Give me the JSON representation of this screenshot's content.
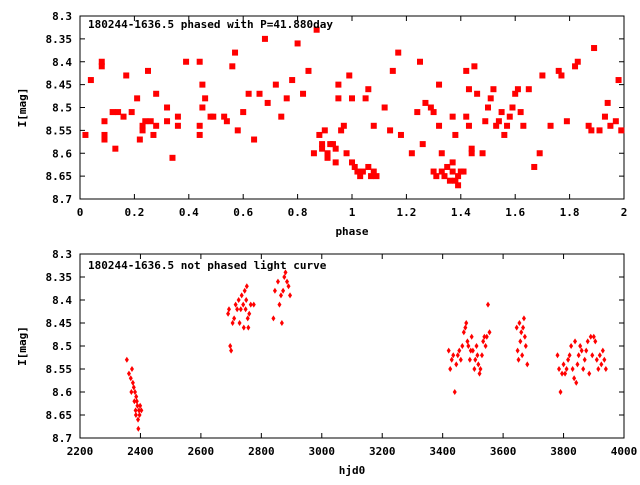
{
  "chart_data": [
    {
      "type": "scatter",
      "title": "180244-1636.5 phased with P=41.880day",
      "xlabel": "phase",
      "ylabel": "I[mag]",
      "xlim": [
        0,
        2
      ],
      "ylim": [
        8.7,
        8.3
      ],
      "y_inverted": true,
      "x_ticks": [
        "0",
        "0.2",
        "0.4",
        "0.6",
        "0.8",
        "1",
        "1.2",
        "1.4",
        "1.6",
        "1.8",
        "2"
      ],
      "y_ticks": [
        "8.3",
        "8.35",
        "8.4",
        "8.45",
        "8.5",
        "8.55",
        "8.6",
        "8.65",
        "8.7"
      ],
      "point_color": "#ff0000",
      "points": [
        [
          0.02,
          8.56
        ],
        [
          0.04,
          8.44
        ],
        [
          0.08,
          8.41
        ],
        [
          0.08,
          8.4
        ],
        [
          0.09,
          8.53
        ],
        [
          0.09,
          8.56
        ],
        [
          0.09,
          8.57
        ],
        [
          0.12,
          8.51
        ],
        [
          0.13,
          8.59
        ],
        [
          0.14,
          8.51
        ],
        [
          0.16,
          8.52
        ],
        [
          0.17,
          8.43
        ],
        [
          0.19,
          8.51
        ],
        [
          0.21,
          8.48
        ],
        [
          0.22,
          8.57
        ],
        [
          0.23,
          8.54
        ],
        [
          0.23,
          8.55
        ],
        [
          0.24,
          8.53
        ],
        [
          0.25,
          8.42
        ],
        [
          0.26,
          8.53
        ],
        [
          0.27,
          8.56
        ],
        [
          0.28,
          8.54
        ],
        [
          0.28,
          8.47
        ],
        [
          0.32,
          8.5
        ],
        [
          0.32,
          8.53
        ],
        [
          0.34,
          8.61
        ],
        [
          0.36,
          8.54
        ],
        [
          0.36,
          8.52
        ],
        [
          0.39,
          8.4
        ],
        [
          0.44,
          8.4
        ],
        [
          0.44,
          8.54
        ],
        [
          0.44,
          8.56
        ],
        [
          0.45,
          8.45
        ],
        [
          0.45,
          8.5
        ],
        [
          0.46,
          8.48
        ],
        [
          0.48,
          8.52
        ],
        [
          0.49,
          8.52
        ],
        [
          0.53,
          8.52
        ],
        [
          0.54,
          8.53
        ],
        [
          0.56,
          8.41
        ],
        [
          0.57,
          8.38
        ],
        [
          0.58,
          8.55
        ],
        [
          0.6,
          8.51
        ],
        [
          0.62,
          8.47
        ],
        [
          0.64,
          8.57
        ],
        [
          0.66,
          8.47
        ],
        [
          0.68,
          8.35
        ],
        [
          0.69,
          8.49
        ],
        [
          0.72,
          8.45
        ],
        [
          0.74,
          8.52
        ],
        [
          0.76,
          8.48
        ],
        [
          0.78,
          8.44
        ],
        [
          0.8,
          8.36
        ],
        [
          0.82,
          8.47
        ],
        [
          0.84,
          8.42
        ],
        [
          0.86,
          8.6
        ],
        [
          0.87,
          8.33
        ],
        [
          0.88,
          8.56
        ],
        [
          0.89,
          8.58
        ],
        [
          0.89,
          8.59
        ],
        [
          0.9,
          8.55
        ],
        [
          0.91,
          8.6
        ],
        [
          0.91,
          8.61
        ],
        [
          0.92,
          8.58
        ],
        [
          0.93,
          8.58
        ],
        [
          0.94,
          8.59
        ],
        [
          0.94,
          8.62
        ],
        [
          0.95,
          8.45
        ],
        [
          0.95,
          8.48
        ],
        [
          0.96,
          8.55
        ],
        [
          0.97,
          8.54
        ],
        [
          0.98,
          8.6
        ],
        [
          0.99,
          8.43
        ],
        [
          1.0,
          8.48
        ],
        [
          1.0,
          8.62
        ],
        [
          1.01,
          8.63
        ],
        [
          1.02,
          8.64
        ],
        [
          1.03,
          8.65
        ],
        [
          1.04,
          8.64
        ],
        [
          1.05,
          8.48
        ],
        [
          1.06,
          8.46
        ],
        [
          1.06,
          8.63
        ],
        [
          1.07,
          8.65
        ],
        [
          1.08,
          8.64
        ],
        [
          1.08,
          8.54
        ],
        [
          1.09,
          8.65
        ],
        [
          1.12,
          8.5
        ],
        [
          1.14,
          8.55
        ],
        [
          1.15,
          8.42
        ],
        [
          1.17,
          8.38
        ],
        [
          1.18,
          8.56
        ],
        [
          1.22,
          8.6
        ],
        [
          1.24,
          8.51
        ],
        [
          1.25,
          8.4
        ],
        [
          1.26,
          8.58
        ],
        [
          1.27,
          8.49
        ],
        [
          1.29,
          8.5
        ],
        [
          1.3,
          8.51
        ],
        [
          1.3,
          8.64
        ],
        [
          1.31,
          8.65
        ],
        [
          1.32,
          8.45
        ],
        [
          1.32,
          8.54
        ],
        [
          1.33,
          8.6
        ],
        [
          1.33,
          8.64
        ],
        [
          1.34,
          8.65
        ],
        [
          1.35,
          8.63
        ],
        [
          1.36,
          8.66
        ],
        [
          1.37,
          8.52
        ],
        [
          1.37,
          8.64
        ],
        [
          1.37,
          8.62
        ],
        [
          1.38,
          8.66
        ],
        [
          1.38,
          8.56
        ],
        [
          1.39,
          8.67
        ],
        [
          1.39,
          8.65
        ],
        [
          1.4,
          8.64
        ],
        [
          1.41,
          8.64
        ],
        [
          1.42,
          8.42
        ],
        [
          1.42,
          8.52
        ],
        [
          1.43,
          8.46
        ],
        [
          1.43,
          8.54
        ],
        [
          1.44,
          8.59
        ],
        [
          1.44,
          8.6
        ],
        [
          1.45,
          8.41
        ],
        [
          1.46,
          8.47
        ],
        [
          1.48,
          8.6
        ],
        [
          1.49,
          8.53
        ],
        [
          1.5,
          8.5
        ],
        [
          1.51,
          8.48
        ],
        [
          1.52,
          8.46
        ],
        [
          1.53,
          8.54
        ],
        [
          1.54,
          8.53
        ],
        [
          1.55,
          8.51
        ],
        [
          1.56,
          8.56
        ],
        [
          1.57,
          8.54
        ],
        [
          1.58,
          8.52
        ],
        [
          1.59,
          8.5
        ],
        [
          1.6,
          8.47
        ],
        [
          1.61,
          8.46
        ],
        [
          1.62,
          8.51
        ],
        [
          1.63,
          8.54
        ],
        [
          1.65,
          8.46
        ],
        [
          1.67,
          8.63
        ],
        [
          1.69,
          8.6
        ],
        [
          1.7,
          8.43
        ],
        [
          1.73,
          8.54
        ],
        [
          1.76,
          8.42
        ],
        [
          1.77,
          8.43
        ],
        [
          1.79,
          8.53
        ],
        [
          1.82,
          8.41
        ],
        [
          1.83,
          8.4
        ],
        [
          1.87,
          8.54
        ],
        [
          1.88,
          8.55
        ],
        [
          1.89,
          8.37
        ],
        [
          1.91,
          8.55
        ],
        [
          1.93,
          8.52
        ],
        [
          1.94,
          8.49
        ],
        [
          1.95,
          8.54
        ],
        [
          1.97,
          8.53
        ],
        [
          1.98,
          8.44
        ],
        [
          1.99,
          8.55
        ]
      ]
    },
    {
      "type": "scatter",
      "title": "180244-1636.5 not phased light curve",
      "xlabel": "hjd0",
      "ylabel": "I[mag]",
      "xlim": [
        2200,
        4000
      ],
      "ylim": [
        8.7,
        8.3
      ],
      "y_inverted": true,
      "x_ticks": [
        "2200",
        "2400",
        "2600",
        "2800",
        "3000",
        "3200",
        "3400",
        "3600",
        "3800",
        "4000"
      ],
      "y_ticks": [
        "8.3",
        "8.35",
        "8.4",
        "8.45",
        "8.5",
        "8.55",
        "8.6",
        "8.65",
        "8.7"
      ],
      "point_color": "#ff0000",
      "points": [
        [
          2355,
          8.53
        ],
        [
          2362,
          8.56
        ],
        [
          2368,
          8.57
        ],
        [
          2370,
          8.6
        ],
        [
          2372,
          8.55
        ],
        [
          2375,
          8.58
        ],
        [
          2378,
          8.59
        ],
        [
          2380,
          8.62
        ],
        [
          2382,
          8.6
        ],
        [
          2384,
          8.64
        ],
        [
          2385,
          8.65
        ],
        [
          2386,
          8.61
        ],
        [
          2388,
          8.62
        ],
        [
          2390,
          8.63
        ],
        [
          2392,
          8.66
        ],
        [
          2393,
          8.68
        ],
        [
          2395,
          8.64
        ],
        [
          2397,
          8.65
        ],
        [
          2399,
          8.63
        ],
        [
          2403,
          8.64
        ],
        [
          2690,
          8.43
        ],
        [
          2693,
          8.42
        ],
        [
          2697,
          8.5
        ],
        [
          2700,
          8.51
        ],
        [
          2705,
          8.45
        ],
        [
          2710,
          8.44
        ],
        [
          2715,
          8.41
        ],
        [
          2720,
          8.42
        ],
        [
          2725,
          8.4
        ],
        [
          2728,
          8.45
        ],
        [
          2732,
          8.42
        ],
        [
          2735,
          8.39
        ],
        [
          2740,
          8.41
        ],
        [
          2742,
          8.46
        ],
        [
          2745,
          8.38
        ],
        [
          2748,
          8.42
        ],
        [
          2750,
          8.4
        ],
        [
          2752,
          8.37
        ],
        [
          2755,
          8.44
        ],
        [
          2757,
          8.46
        ],
        [
          2760,
          8.43
        ],
        [
          2765,
          8.41
        ],
        [
          2775,
          8.41
        ],
        [
          2840,
          8.44
        ],
        [
          2845,
          8.38
        ],
        [
          2855,
          8.36
        ],
        [
          2860,
          8.41
        ],
        [
          2865,
          8.39
        ],
        [
          2868,
          8.45
        ],
        [
          2872,
          8.38
        ],
        [
          2876,
          8.35
        ],
        [
          2880,
          8.34
        ],
        [
          2885,
          8.36
        ],
        [
          2890,
          8.37
        ],
        [
          2895,
          8.39
        ],
        [
          3420,
          8.51
        ],
        [
          3425,
          8.55
        ],
        [
          3430,
          8.53
        ],
        [
          3435,
          8.52
        ],
        [
          3440,
          8.6
        ],
        [
          3445,
          8.54
        ],
        [
          3450,
          8.52
        ],
        [
          3455,
          8.51
        ],
        [
          3460,
          8.53
        ],
        [
          3465,
          8.5
        ],
        [
          3470,
          8.47
        ],
        [
          3475,
          8.46
        ],
        [
          3478,
          8.45
        ],
        [
          3482,
          8.49
        ],
        [
          3485,
          8.5
        ],
        [
          3490,
          8.53
        ],
        [
          3493,
          8.51
        ],
        [
          3496,
          8.48
        ],
        [
          3500,
          8.51
        ],
        [
          3505,
          8.55
        ],
        [
          3508,
          8.53
        ],
        [
          3512,
          8.5
        ],
        [
          3515,
          8.52
        ],
        [
          3518,
          8.54
        ],
        [
          3522,
          8.56
        ],
        [
          3525,
          8.55
        ],
        [
          3530,
          8.52
        ],
        [
          3534,
          8.49
        ],
        [
          3538,
          8.48
        ],
        [
          3542,
          8.5
        ],
        [
          3546,
          8.48
        ],
        [
          3550,
          8.41
        ],
        [
          3555,
          8.47
        ],
        [
          3645,
          8.46
        ],
        [
          3648,
          8.51
        ],
        [
          3651,
          8.53
        ],
        [
          3654,
          8.45
        ],
        [
          3657,
          8.49
        ],
        [
          3660,
          8.47
        ],
        [
          3663,
          8.52
        ],
        [
          3666,
          8.46
        ],
        [
          3669,
          8.44
        ],
        [
          3672,
          8.48
        ],
        [
          3675,
          8.5
        ],
        [
          3680,
          8.54
        ],
        [
          3780,
          8.52
        ],
        [
          3785,
          8.55
        ],
        [
          3790,
          8.6
        ],
        [
          3795,
          8.56
        ],
        [
          3800,
          8.54
        ],
        [
          3805,
          8.56
        ],
        [
          3810,
          8.55
        ],
        [
          3815,
          8.53
        ],
        [
          3820,
          8.52
        ],
        [
          3825,
          8.5
        ],
        [
          3830,
          8.55
        ],
        [
          3835,
          8.57
        ],
        [
          3838,
          8.49
        ],
        [
          3842,
          8.58
        ],
        [
          3846,
          8.54
        ],
        [
          3850,
          8.52
        ],
        [
          3855,
          8.5
        ],
        [
          3860,
          8.51
        ],
        [
          3865,
          8.55
        ],
        [
          3870,
          8.53
        ],
        [
          3875,
          8.51
        ],
        [
          3880,
          8.49
        ],
        [
          3885,
          8.56
        ],
        [
          3890,
          8.48
        ],
        [
          3895,
          8.52
        ],
        [
          3900,
          8.48
        ],
        [
          3905,
          8.49
        ],
        [
          3910,
          8.53
        ],
        [
          3915,
          8.55
        ],
        [
          3920,
          8.52
        ],
        [
          3925,
          8.54
        ],
        [
          3930,
          8.51
        ],
        [
          3935,
          8.53
        ],
        [
          3940,
          8.55
        ]
      ]
    }
  ]
}
